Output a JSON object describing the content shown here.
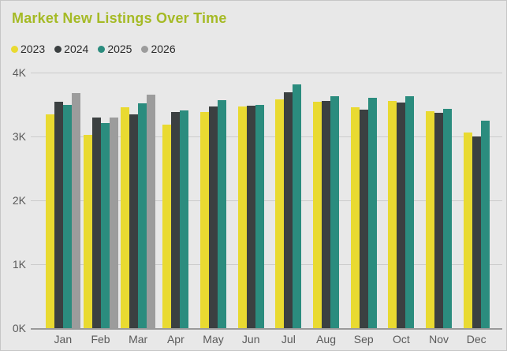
{
  "chart_data": {
    "type": "bar",
    "title": "Market New Listings Over Time",
    "title_color": "#a5ba25",
    "background_color": "#e8e8e8",
    "axis_text_color": "#5a5a5a",
    "categories": [
      "Jan",
      "Feb",
      "Mar",
      "Apr",
      "May",
      "Jun",
      "Jul",
      "Aug",
      "Sep",
      "Oct",
      "Nov",
      "Dec"
    ],
    "series": [
      {
        "name": "2023",
        "color": "#e9da31",
        "values": [
          3340,
          3020,
          3460,
          3180,
          3380,
          3470,
          3580,
          3540,
          3460,
          3550,
          3400,
          3060
        ]
      },
      {
        "name": "2024",
        "color": "#3b4041",
        "values": [
          3540,
          3300,
          3350,
          3380,
          3470,
          3480,
          3690,
          3550,
          3420,
          3530,
          3370,
          3000
        ]
      },
      {
        "name": "2025",
        "color": "#2b8c7e",
        "values": [
          3490,
          3210,
          3520,
          3410,
          3570,
          3490,
          3820,
          3630,
          3610,
          3630,
          3430,
          3250
        ]
      },
      {
        "name": "2026",
        "color": "#9c9c9c",
        "values": [
          3680,
          3300,
          3660,
          null,
          null,
          null,
          null,
          null,
          null,
          null,
          null,
          null
        ]
      }
    ],
    "ylabel": "",
    "xlabel": "",
    "ylim": [
      0,
      4000
    ],
    "yticks": [
      {
        "value": 0,
        "label": "0K"
      },
      {
        "value": 1000,
        "label": "1K"
      },
      {
        "value": 2000,
        "label": "2K"
      },
      {
        "value": 3000,
        "label": "3K"
      },
      {
        "value": 4000,
        "label": "4K"
      }
    ],
    "grid": true,
    "legend_position": "top-left"
  }
}
